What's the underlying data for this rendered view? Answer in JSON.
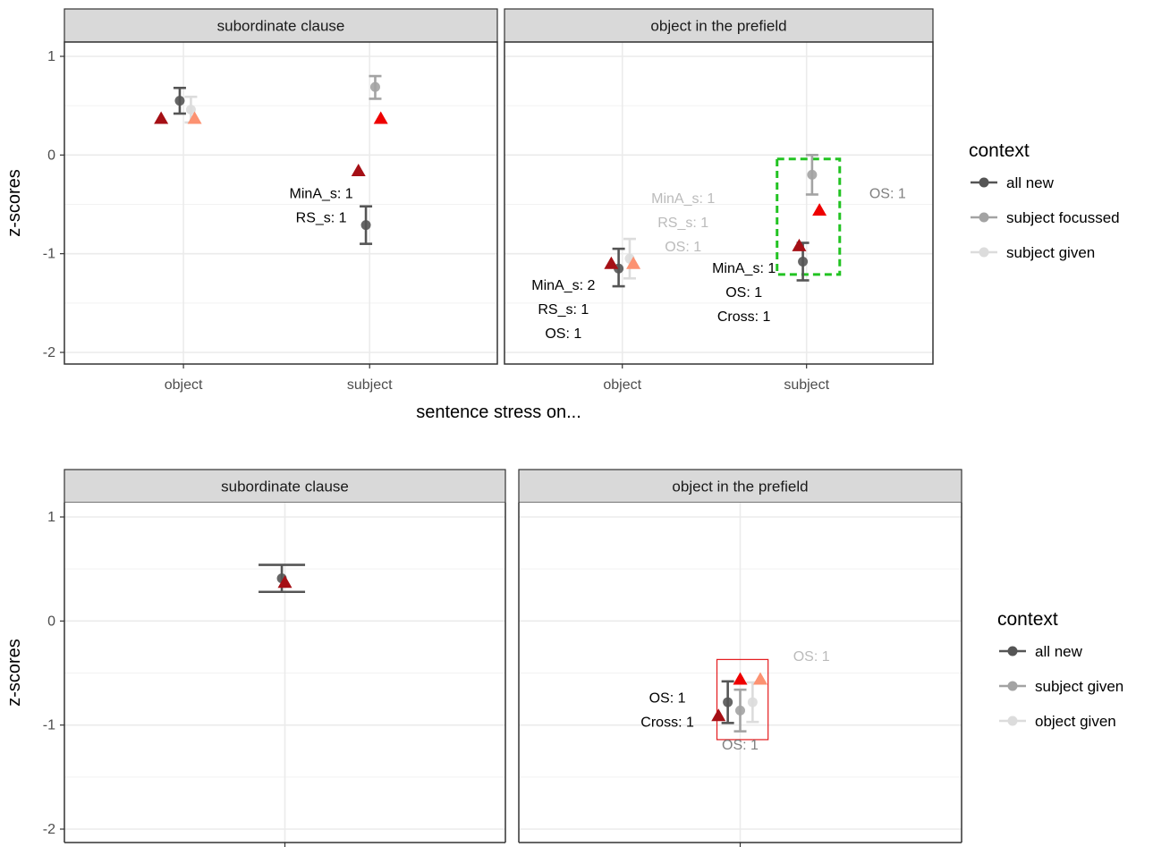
{
  "chart_data": [
    {
      "type": "scatter",
      "ylabel": "z-scores",
      "xlabel": "sentence stress on...",
      "categories": [
        "object",
        "subject"
      ],
      "ylim": [
        -2.15,
        1.05
      ],
      "yticks": [
        1,
        0,
        -1,
        -2
      ],
      "ytick_labels": [
        "1",
        "0",
        "-1",
        "-2"
      ],
      "grid": true,
      "legend": {
        "title": "context",
        "placement": "right",
        "entries": [
          {
            "label": "all new",
            "color": "#555555"
          },
          {
            "label": "subject focussed",
            "color": "#a3a3a3"
          },
          {
            "label": "subject given",
            "color": "#dcdcdc"
          }
        ]
      },
      "panels": [
        {
          "strip": "subordinate clause",
          "x_labels": [
            "object",
            "subject"
          ],
          "series": [
            {
              "name": "all new",
              "color": "#555555",
              "points": [
                {
                  "x": "object",
                  "y": 0.55,
                  "lo": 0.42,
                  "hi": 0.68
                },
                {
                  "x": "subject",
                  "y": -0.71,
                  "lo": -0.9,
                  "hi": -0.52
                }
              ]
            },
            {
              "name": "subject focussed",
              "color": "#a3a3a3",
              "points": [
                {
                  "x": "subject",
                  "y": 0.69,
                  "lo": 0.57,
                  "hi": 0.8
                }
              ]
            },
            {
              "name": "subject given",
              "color": "#dcdcdc",
              "points": [
                {
                  "x": "object",
                  "y": 0.46,
                  "lo": 0.33,
                  "hi": 0.59
                }
              ]
            }
          ],
          "triangles": [
            {
              "x": "object",
              "offset": -0.12,
              "y": 0.37,
              "color": "#a50f15"
            },
            {
              "x": "object",
              "offset": 0.06,
              "y": 0.37,
              "color": "#fc9272"
            },
            {
              "x": "subject",
              "offset": -0.06,
              "y": -0.16,
              "color": "#a50f15"
            },
            {
              "x": "subject",
              "offset": 0.06,
              "y": 0.37,
              "color": "#ee0000"
            }
          ],
          "annotations": [
            {
              "lines": [
                "MinA_s: 1",
                "RS_s: 1"
              ],
              "x": "subject",
              "offset": -0.26,
              "y": -0.39,
              "color": "#000000"
            }
          ]
        },
        {
          "strip": "object in the prefield",
          "x_labels": [
            "object",
            "subject"
          ],
          "series": [
            {
              "name": "all new",
              "color": "#555555",
              "points": [
                {
                  "x": "object",
                  "y": -1.15,
                  "lo": -1.33,
                  "hi": -0.95
                },
                {
                  "x": "subject",
                  "y": -1.08,
                  "lo": -1.27,
                  "hi": -0.89
                }
              ]
            },
            {
              "name": "subject focussed",
              "color": "#a3a3a3",
              "points": [
                {
                  "x": "subject",
                  "y": -0.2,
                  "lo": -0.4,
                  "hi": 0.0
                }
              ]
            },
            {
              "name": "subject given",
              "color": "#dcdcdc",
              "points": [
                {
                  "x": "object",
                  "y": -1.05,
                  "lo": -1.25,
                  "hi": -0.85
                }
              ]
            }
          ],
          "triangles": [
            {
              "x": "object",
              "offset": -0.06,
              "y": -1.1,
              "color": "#a50f15"
            },
            {
              "x": "object",
              "offset": 0.06,
              "y": -1.1,
              "color": "#fc9272"
            },
            {
              "x": "subject",
              "offset": -0.04,
              "y": -0.92,
              "color": "#a50f15"
            },
            {
              "x": "subject",
              "offset": 0.07,
              "y": -0.56,
              "color": "#ee0000"
            }
          ],
          "annotations": [
            {
              "lines": [
                "MinA_s: 1",
                "RS_s: 1",
                "OS: 1"
              ],
              "x": "object",
              "offset": 0.33,
              "y": -0.44,
              "color": "#bbbbbb"
            },
            {
              "lines": [
                "MinA_s: 2",
                "RS_s: 1",
                "OS: 1"
              ],
              "x": "object",
              "offset": -0.32,
              "y": -1.32,
              "color": "#000000"
            },
            {
              "lines": [
                "MinA_s: 1",
                "OS: 1",
                "Cross: 1"
              ],
              "x": "subject",
              "offset": -0.34,
              "y": -1.15,
              "color": "#000000"
            },
            {
              "lines": [
                "OS: 1"
              ],
              "x": "subject",
              "offset": 0.44,
              "y": -0.39,
              "color": "#808080"
            }
          ],
          "highlight": {
            "shape": "dashed-box",
            "color": "#22c322",
            "x0": "subject",
            "off0": -0.16,
            "off1": 0.18,
            "y0": -1.21,
            "y1": -0.04
          }
        }
      ]
    },
    {
      "type": "scatter",
      "ylabel": "z-scores",
      "xlabel": "",
      "categories": [
        "object"
      ],
      "ylim": [
        -2.15,
        1.05
      ],
      "yticks": [
        1,
        0,
        -1,
        -2
      ],
      "ytick_labels": [
        "1",
        "0",
        "-1",
        "-2"
      ],
      "grid": true,
      "legend": {
        "title": "context",
        "placement": "right",
        "entries": [
          {
            "label": "all new",
            "color": "#555555"
          },
          {
            "label": "subject given",
            "color": "#a3a3a3"
          },
          {
            "label": "object given",
            "color": "#dcdcdc"
          }
        ]
      },
      "panels": [
        {
          "strip": "subordinate clause",
          "x_labels": [],
          "series": [
            {
              "name": "all new",
              "color": "#555555",
              "points": [
                {
                  "x": "object",
                  "y": 0.41,
                  "lo": 0.28,
                  "hi": 0.54
                }
              ]
            }
          ],
          "wide_errorbar": true,
          "triangles": [
            {
              "x": "object",
              "offset": 0.0,
              "y": 0.37,
              "color": "#a50f15"
            }
          ],
          "annotations": []
        },
        {
          "strip": "object in the prefield",
          "x_labels": [],
          "series": [
            {
              "name": "all new",
              "color": "#555555",
              "points": [
                {
                  "x": "object",
                  "y": -0.78,
                  "lo": -0.98,
                  "hi": -0.58
                }
              ]
            },
            {
              "name": "subject given",
              "color": "#a3a3a3",
              "points": [
                {
                  "x": "object",
                  "y": -0.86,
                  "lo": -1.06,
                  "hi": -0.66
                }
              ]
            },
            {
              "name": "object given",
              "color": "#dcdcdc",
              "points": [
                {
                  "x": "object",
                  "y": -0.78,
                  "lo": -0.97,
                  "hi": -0.59
                }
              ]
            }
          ],
          "triangles": [
            {
              "x": "object",
              "offset": -0.14,
              "y": -0.91,
              "color": "#a50f15"
            },
            {
              "x": "object",
              "offset": 0.0,
              "y": -0.56,
              "color": "#ee0000"
            },
            {
              "x": "object",
              "offset": 0.13,
              "y": -0.56,
              "color": "#fc9272"
            }
          ],
          "annotations": [
            {
              "lines": [
                "OS: 1",
                "Cross: 1"
              ],
              "x": "object",
              "offset": -0.47,
              "y": -0.74,
              "color": "#000000"
            },
            {
              "lines": [
                "OS: 1"
              ],
              "x": "object",
              "offset": 0.0,
              "y": -1.19,
              "color": "#808080"
            },
            {
              "lines": [
                "OS: 1"
              ],
              "x": "object",
              "offset": 0.46,
              "y": -0.34,
              "color": "#bbbbbb"
            }
          ],
          "highlight": {
            "shape": "solid-box",
            "color": "#e41a1c",
            "x0": "object",
            "off0": -0.15,
            "off1": 0.18,
            "y0": -1.14,
            "y1": -0.37
          }
        }
      ]
    }
  ]
}
